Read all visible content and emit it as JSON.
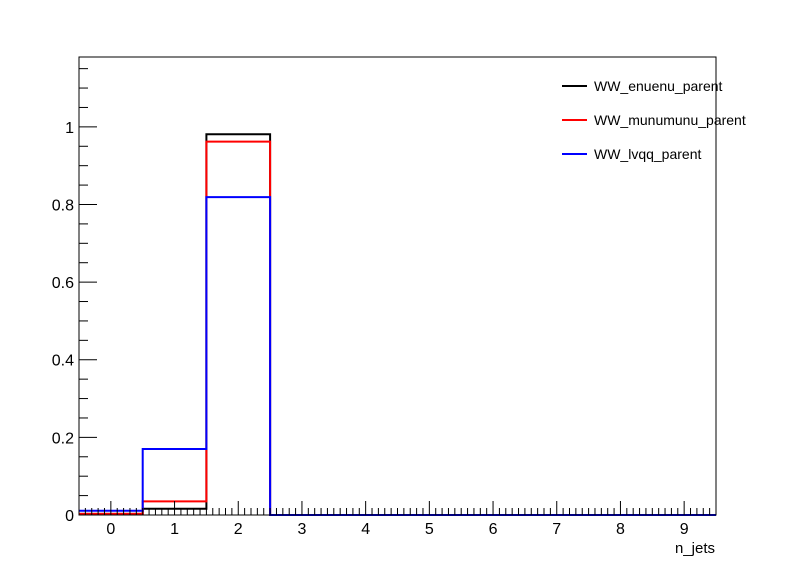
{
  "chart_data": {
    "type": "line",
    "style": "step-histogram",
    "title": "",
    "xlabel": "n_jets",
    "ylabel": "",
    "xlim": [
      -0.5,
      9.5
    ],
    "ylim": [
      0,
      1.18
    ],
    "x_ticks": [
      "0",
      "1",
      "2",
      "3",
      "4",
      "5",
      "6",
      "7",
      "8",
      "9"
    ],
    "y_ticks": [
      "0",
      "0.2",
      "0.4",
      "0.6",
      "0.8",
      "1"
    ],
    "grid": false,
    "legend_position": "top-right",
    "categories": [
      0,
      1,
      2,
      3,
      4,
      5,
      6,
      7,
      8,
      9
    ],
    "series": [
      {
        "name": "WW_enuenu_parent",
        "color": "#000000",
        "values": [
          0.003,
          0.016,
          0.981,
          0,
          0,
          0,
          0,
          0,
          0,
          0
        ]
      },
      {
        "name": "WW_munumunu_parent",
        "color": "#ff0000",
        "values": [
          0.003,
          0.035,
          0.962,
          0,
          0,
          0,
          0,
          0,
          0,
          0
        ]
      },
      {
        "name": "WW_lvqq_parent",
        "color": "#0000ff",
        "values": [
          0.011,
          0.17,
          0.819,
          0,
          0,
          0,
          0,
          0,
          0,
          0
        ]
      }
    ]
  }
}
